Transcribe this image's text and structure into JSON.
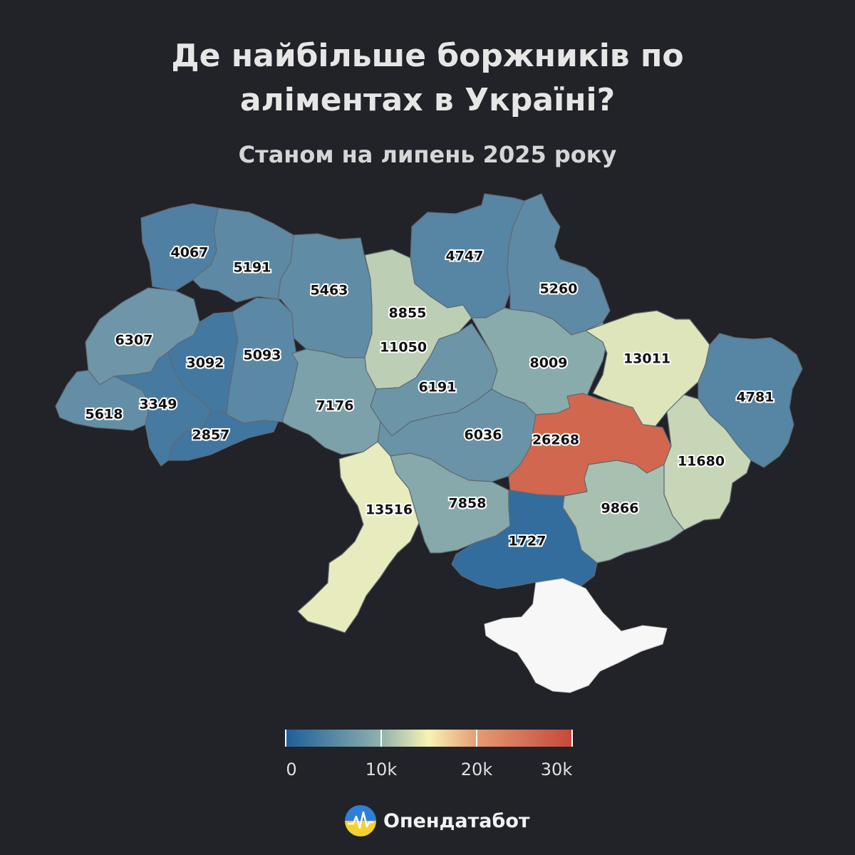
{
  "header": {
    "title_line1": "Де найбільше боржників по",
    "title_line2": "аліментах в Україні?",
    "subtitle": "Станом на липень 2025 року"
  },
  "regions": [
    {
      "id": "volyn",
      "value": 4067
    },
    {
      "id": "rivne",
      "value": 5191
    },
    {
      "id": "zhytomyr",
      "value": 5463
    },
    {
      "id": "kyiv-city",
      "value": 8855
    },
    {
      "id": "kyiv-oblast",
      "value": 11050
    },
    {
      "id": "chernihiv",
      "value": 4747
    },
    {
      "id": "sumy",
      "value": 5260
    },
    {
      "id": "lviv",
      "value": 6307
    },
    {
      "id": "ternopil",
      "value": 3092
    },
    {
      "id": "khmelnytskyi",
      "value": 5093
    },
    {
      "id": "zakarpattia",
      "value": 5618
    },
    {
      "id": "ivano-frankivsk",
      "value": 3349
    },
    {
      "id": "chernivtsi",
      "value": 2857
    },
    {
      "id": "vinnytsia",
      "value": 7176
    },
    {
      "id": "cherkasy",
      "value": 6191
    },
    {
      "id": "poltava",
      "value": 8009
    },
    {
      "id": "kharkiv",
      "value": 13011
    },
    {
      "id": "luhansk",
      "value": 4781
    },
    {
      "id": "kirovohrad",
      "value": 6036
    },
    {
      "id": "dnipropetrovsk",
      "value": 26268
    },
    {
      "id": "donetsk",
      "value": 11680
    },
    {
      "id": "odesa",
      "value": 13516
    },
    {
      "id": "mykolaiv",
      "value": 7858
    },
    {
      "id": "kherson",
      "value": 1727
    },
    {
      "id": "zaporizhzhia",
      "value": 9866
    }
  ],
  "legend": {
    "tick_labels": [
      "0",
      "10k",
      "20k",
      "30k"
    ],
    "tick_values": [
      0,
      10000,
      20000,
      30000
    ],
    "min": 0,
    "max": 30000,
    "colors": [
      "#1d5f99",
      "#6f97a8",
      "#f7f3b3",
      "#e59a73",
      "#c5483a"
    ]
  },
  "brand": {
    "name": "Опендатабот",
    "logo_icon": "opendatabot-logo-icon"
  }
}
